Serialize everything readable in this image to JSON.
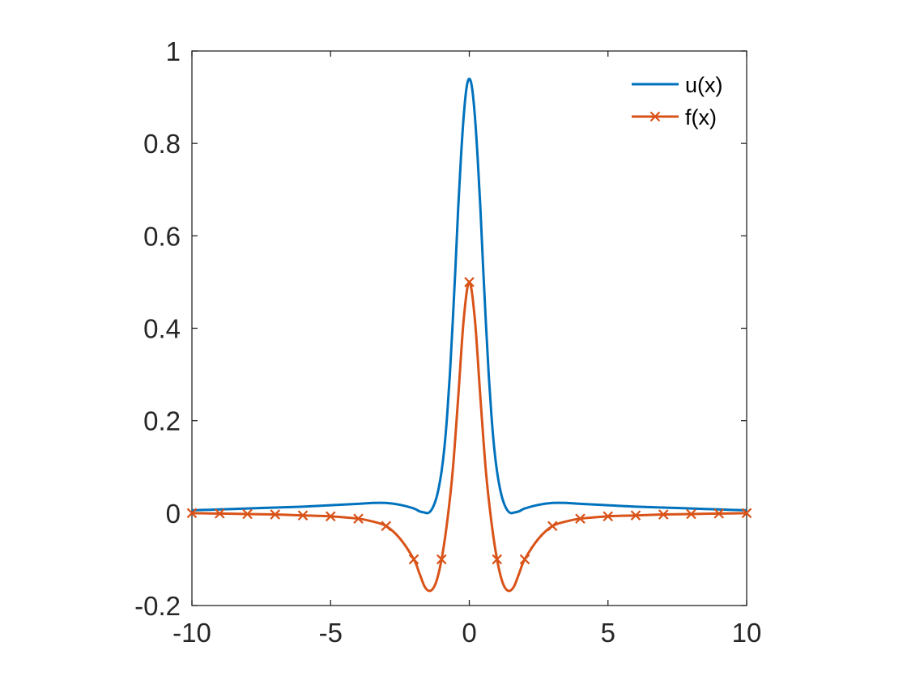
{
  "chart_data": {
    "type": "line",
    "title": "",
    "xlabel": "",
    "ylabel": "",
    "xlim": [
      -10,
      10
    ],
    "ylim": [
      -0.2,
      1
    ],
    "x_ticks": [
      "-10",
      "-5",
      "0",
      "5",
      "10"
    ],
    "y_ticks": [
      "-0.2",
      "0",
      "0.2",
      "0.4",
      "0.6",
      "0.8",
      "1"
    ],
    "grid": false,
    "legend_position": "top-right",
    "series": [
      {
        "name": "u(x)",
        "color": "#0072BD",
        "marker": "none",
        "x": [
          -10,
          -9,
          -8,
          -7,
          -6,
          -5,
          -4,
          -3.5,
          -3,
          -2.5,
          -2,
          -1.8,
          -1.6,
          -1.5,
          -1.4,
          -1.3,
          -1.2,
          -1.1,
          -1,
          -0.9,
          -0.8,
          -0.7,
          -0.6,
          -0.5,
          -0.4,
          -0.3,
          -0.2,
          -0.1,
          0,
          0.1,
          0.2,
          0.3,
          0.4,
          0.5,
          0.6,
          0.7,
          0.8,
          0.9,
          1,
          1.1,
          1.2,
          1.3,
          1.4,
          1.5,
          1.6,
          1.8,
          2,
          2.5,
          3,
          3.5,
          4,
          5,
          6,
          7,
          8,
          9,
          10
        ],
        "y": [
          0.006,
          0.008,
          0.01,
          0.012,
          0.014,
          0.017,
          0.02,
          0.022,
          0.022,
          0.018,
          0.01,
          0.004,
          0.001,
          0.0,
          0.004,
          0.014,
          0.03,
          0.055,
          0.09,
          0.14,
          0.21,
          0.3,
          0.41,
          0.53,
          0.66,
          0.77,
          0.86,
          0.92,
          0.94,
          0.92,
          0.86,
          0.77,
          0.66,
          0.53,
          0.41,
          0.3,
          0.21,
          0.14,
          0.09,
          0.055,
          0.03,
          0.014,
          0.004,
          0.0,
          0.001,
          0.004,
          0.01,
          0.018,
          0.022,
          0.022,
          0.02,
          0.017,
          0.014,
          0.012,
          0.01,
          0.008,
          0.006
        ]
      },
      {
        "name": "f(x)",
        "color": "#D95319",
        "marker": "x",
        "x": [
          -10,
          -9,
          -8,
          -7,
          -6,
          -5,
          -4,
          -3.5,
          -3,
          -2.5,
          -2,
          -1.8,
          -1.6,
          -1.4,
          -1.2,
          -1,
          -0.8,
          -0.6,
          -0.4,
          -0.2,
          0,
          0.2,
          0.4,
          0.6,
          0.8,
          1,
          1.2,
          1.4,
          1.6,
          1.8,
          2,
          2.5,
          3,
          3.5,
          4,
          5,
          6,
          7,
          8,
          9,
          10
        ],
        "y": [
          0.0,
          -0.001,
          -0.002,
          -0.003,
          -0.005,
          -0.007,
          -0.012,
          -0.018,
          -0.028,
          -0.055,
          -0.1,
          -0.13,
          -0.16,
          -0.168,
          -0.15,
          -0.1,
          -0.02,
          0.09,
          0.25,
          0.42,
          0.5,
          0.42,
          0.25,
          0.09,
          -0.02,
          -0.1,
          -0.15,
          -0.168,
          -0.16,
          -0.13,
          -0.1,
          -0.055,
          -0.028,
          -0.018,
          -0.012,
          -0.007,
          -0.005,
          -0.003,
          -0.002,
          -0.001,
          0.0
        ],
        "marker_x": [
          -10,
          -9,
          -8,
          -7,
          -6,
          -5,
          -4,
          -3,
          -2,
          -1,
          0,
          1,
          2,
          3,
          4,
          5,
          6,
          7,
          8,
          9,
          10
        ],
        "marker_y": [
          0.0,
          -0.001,
          -0.002,
          -0.003,
          -0.005,
          -0.007,
          -0.012,
          -0.028,
          -0.1,
          -0.1,
          0.5,
          -0.1,
          -0.1,
          -0.028,
          -0.012,
          -0.007,
          -0.005,
          -0.003,
          -0.002,
          -0.001,
          0.0
        ]
      }
    ]
  }
}
